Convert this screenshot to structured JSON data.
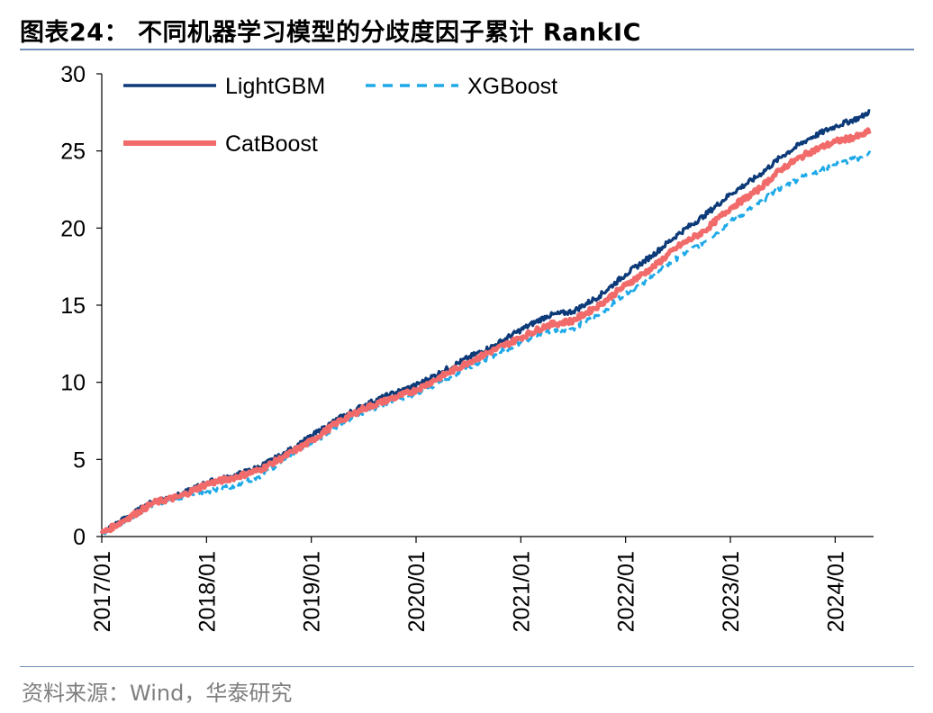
{
  "header": {
    "title": "图表24：  不同机器学习模型的分歧度因子累计 RankIC"
  },
  "footer": {
    "source": "资料来源：Wind，华泰研究"
  },
  "chart_data": {
    "type": "line",
    "title": "图表24：  不同机器学习模型的分歧度因子累计 RankIC",
    "xlabel": "",
    "ylabel": "",
    "ylim": [
      0,
      30
    ],
    "yticks": [
      "0",
      "5",
      "10",
      "15",
      "20",
      "25",
      "30"
    ],
    "xticks": [
      "2017/01",
      "2018/01",
      "2019/01",
      "2020/01",
      "2021/01",
      "2022/01",
      "2023/01",
      "2024/01"
    ],
    "legend_position": "top-left",
    "grid": false,
    "x": [
      "2017/01",
      "2017/04",
      "2017/07",
      "2017/10",
      "2018/01",
      "2018/04",
      "2018/07",
      "2018/10",
      "2019/01",
      "2019/04",
      "2019/07",
      "2019/10",
      "2020/01",
      "2020/04",
      "2020/07",
      "2020/10",
      "2021/01",
      "2021/04",
      "2021/07",
      "2021/10",
      "2022/01",
      "2022/04",
      "2022/07",
      "2022/10",
      "2023/01",
      "2023/04",
      "2023/07",
      "2023/10",
      "2024/01",
      "2024/04",
      "2024/05"
    ],
    "series": [
      {
        "name": "LightGBM",
        "color": "#0d3a78",
        "dash": "solid",
        "values": [
          0.2,
          1.3,
          2.3,
          2.7,
          3.5,
          3.9,
          4.5,
          5.4,
          6.5,
          7.6,
          8.5,
          9.2,
          9.8,
          10.7,
          11.6,
          12.4,
          13.4,
          14.3,
          14.6,
          15.6,
          17.0,
          18.2,
          19.6,
          20.8,
          22.2,
          23.3,
          24.7,
          25.8,
          26.6,
          27.2,
          27.6
        ]
      },
      {
        "name": "XGBoost",
        "color": "#1ea9e8",
        "dash": "dashed",
        "values": [
          0.2,
          1.1,
          2.1,
          2.5,
          2.9,
          3.3,
          3.9,
          5.0,
          6.0,
          7.2,
          8.1,
          8.7,
          9.2,
          10.1,
          11.0,
          11.8,
          12.6,
          13.3,
          13.5,
          14.4,
          15.8,
          16.8,
          18.1,
          19.1,
          20.4,
          21.5,
          22.7,
          23.5,
          24.1,
          24.6,
          25.0
        ]
      },
      {
        "name": "CatBoost",
        "color": "#f26b6b",
        "dash": "solid",
        "values": [
          0.2,
          1.2,
          2.2,
          2.6,
          3.4,
          3.8,
          4.3,
          5.2,
          6.2,
          7.4,
          8.3,
          8.9,
          9.5,
          10.4,
          11.3,
          12.1,
          12.9,
          13.7,
          14.0,
          15.0,
          16.3,
          17.4,
          18.8,
          19.8,
          21.3,
          22.4,
          23.9,
          24.9,
          25.6,
          26.0,
          26.3
        ]
      }
    ]
  }
}
